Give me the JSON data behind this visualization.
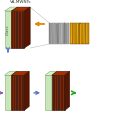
{
  "title": "VA-MWNTs",
  "glass_color": "#c8e6b8",
  "glass_top_color": "#d8f0c8",
  "glass_right_color": "#a8d098",
  "glass_edge_color": "#88a878",
  "cnt_block_front": "#8b2200",
  "cnt_block_top": "#a83000",
  "cnt_block_right": "#5a1500",
  "cnt_block_edge": "#3a0f00",
  "cnt_line_color": "#222222",
  "arrow_orange": "#dd8800",
  "arrow_blue_down": "#5577cc",
  "arrow_blue_right": "#5577cc",
  "arrow_green": "#22aa22",
  "arrow_purple": "#8855bb",
  "sem_bg": "#a0a0a0",
  "tem_bg": "#b87800",
  "glass_text": "Glass",
  "glass_text_color": "#446644",
  "label_color": "#333333",
  "white": "#ffffff",
  "bg": "#ffffff"
}
